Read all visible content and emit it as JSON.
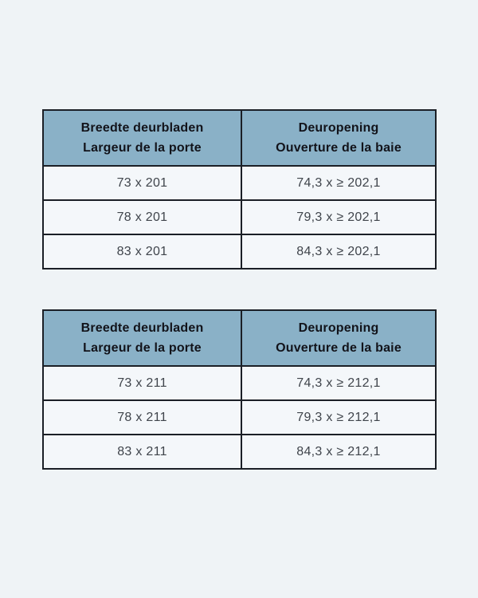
{
  "colors": {
    "page_bg": "#eff3f6",
    "row_bg": "#f4f7fa",
    "header_bg": "#8ab1c7",
    "border": "#1b1f26",
    "header_text": "#12131a",
    "cell_text": "#3f444b"
  },
  "tables": [
    {
      "columns": [
        {
          "line1": "Breedte deurbladen",
          "line2": "Largeur de la porte"
        },
        {
          "line1": "Deuropening",
          "line2": "Ouverture de la baie"
        }
      ],
      "rows": [
        [
          "73 x 201",
          "74,3 x ≥ 202,1"
        ],
        [
          "78 x 201",
          "79,3 x ≥ 202,1"
        ],
        [
          "83 x 201",
          "84,3 x ≥ 202,1"
        ]
      ]
    },
    {
      "columns": [
        {
          "line1": "Breedte deurbladen",
          "line2": "Largeur de la porte"
        },
        {
          "line1": "Deuropening",
          "line2": "Ouverture de la baie"
        }
      ],
      "rows": [
        [
          "73 x 211",
          "74,3 x ≥ 212,1"
        ],
        [
          "78 x 211",
          "79,3 x ≥ 212,1"
        ],
        [
          "83 x 211",
          "84,3 x ≥ 212,1"
        ]
      ]
    }
  ]
}
